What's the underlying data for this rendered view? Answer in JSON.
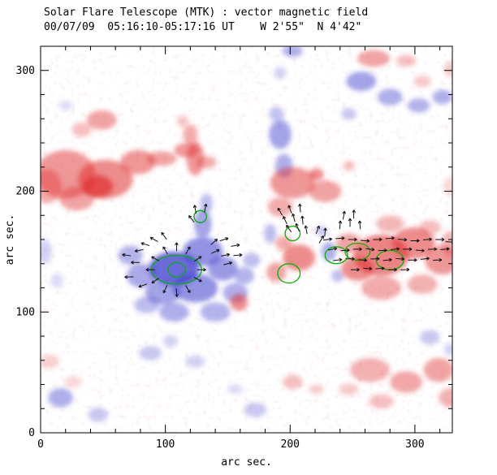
{
  "header": {
    "line1": "Solar Flare Telescope (MTK) : vector magnetic field",
    "line2": "00/07/09  05:16:10-05:17:16 UT    W 2'55\"  N 4'42\""
  },
  "chart_data": {
    "type": "heatmap",
    "title": "Solar Flare Telescope (MTK) : vector magnetic field",
    "subtitle": "00/07/09  05:16:10-05:17:16 UT    W 2'55\"  N 4'42\"",
    "xlabel": "arc sec.",
    "ylabel": "arc sec.",
    "xlim": [
      0,
      330
    ],
    "ylim": [
      0,
      320
    ],
    "xticks": [
      0,
      100,
      200,
      300
    ],
    "yticks": [
      0,
      100,
      200,
      300
    ],
    "minor_tick_step": 20,
    "colors": {
      "positive_polarity": "#e03030",
      "negative_polarity": "#3838cc",
      "contour": "#00b300",
      "arrow": "#111111",
      "axis": "#000000",
      "background": "#ffffff"
    },
    "arrow_length_arcsec": 7,
    "red_blobs": [
      [
        20,
        214,
        24,
        20,
        0.5
      ],
      [
        52,
        210,
        22,
        16,
        0.55
      ],
      [
        46,
        204,
        12,
        9,
        0.7
      ],
      [
        29,
        194,
        14,
        10,
        0.45
      ],
      [
        5,
        204,
        12,
        14,
        0.4
      ],
      [
        78,
        224,
        14,
        10,
        0.5
      ],
      [
        97,
        227,
        12,
        6,
        0.45
      ],
      [
        117,
        234,
        10,
        6,
        0.5
      ],
      [
        133,
        224,
        8,
        5,
        0.4
      ],
      [
        49,
        259,
        12,
        8,
        0.45
      ],
      [
        33,
        251,
        8,
        6,
        0.3
      ],
      [
        124,
        227,
        7,
        14,
        0.5
      ],
      [
        120,
        247,
        6,
        8,
        0.4
      ],
      [
        114,
        258,
        5,
        5,
        0.25
      ],
      [
        202,
        207,
        18,
        13,
        0.5
      ],
      [
        228,
        200,
        13,
        9,
        0.45
      ],
      [
        192,
        187,
        10,
        8,
        0.4
      ],
      [
        221,
        214,
        6,
        5,
        0.55
      ],
      [
        247,
        221,
        5,
        4,
        0.3
      ],
      [
        267,
        310,
        13,
        7,
        0.45
      ],
      [
        293,
        308,
        8,
        5,
        0.3
      ],
      [
        273,
        147,
        22,
        17,
        0.6
      ],
      [
        299,
        157,
        17,
        13,
        0.55
      ],
      [
        322,
        143,
        14,
        12,
        0.5
      ],
      [
        254,
        136,
        13,
        10,
        0.55
      ],
      [
        247,
        157,
        10,
        8,
        0.45
      ],
      [
        273,
        120,
        16,
        10,
        0.4
      ],
      [
        306,
        123,
        12,
        8,
        0.38
      ],
      [
        280,
        173,
        11,
        7,
        0.35
      ],
      [
        312,
        170,
        9,
        6,
        0.3
      ],
      [
        207,
        145,
        13,
        11,
        0.55
      ],
      [
        189,
        133,
        8,
        8,
        0.45
      ],
      [
        195,
        157,
        7,
        6,
        0.4
      ],
      [
        159,
        108,
        7,
        7,
        0.55
      ],
      [
        264,
        52,
        16,
        10,
        0.38
      ],
      [
        293,
        42,
        13,
        9,
        0.42
      ],
      [
        319,
        52,
        12,
        10,
        0.45
      ],
      [
        329,
        29,
        10,
        8,
        0.38
      ],
      [
        273,
        26,
        10,
        6,
        0.3
      ],
      [
        247,
        36,
        8,
        5,
        0.25
      ],
      [
        202,
        42,
        8,
        6,
        0.3
      ],
      [
        221,
        36,
        6,
        4,
        0.25
      ],
      [
        7,
        59,
        8,
        6,
        0.22
      ],
      [
        26,
        42,
        7,
        5,
        0.18
      ],
      [
        329,
        157,
        8,
        10,
        0.35
      ],
      [
        306,
        291,
        7,
        5,
        0.25
      ],
      [
        329,
        301,
        6,
        6,
        0.25
      ],
      [
        329,
        204,
        6,
        8,
        0.2
      ]
    ],
    "blue_blobs": [
      [
        107,
        136,
        20,
        14,
        0.75
      ],
      [
        130,
        150,
        16,
        12,
        0.55
      ],
      [
        146,
        136,
        12,
        10,
        0.5
      ],
      [
        124,
        120,
        18,
        12,
        0.55
      ],
      [
        98,
        116,
        14,
        10,
        0.45
      ],
      [
        81,
        130,
        12,
        10,
        0.42
      ],
      [
        156,
        116,
        10,
        8,
        0.4
      ],
      [
        140,
        100,
        12,
        8,
        0.38
      ],
      [
        107,
        100,
        12,
        8,
        0.4
      ],
      [
        85,
        106,
        10,
        7,
        0.32
      ],
      [
        163,
        130,
        8,
        7,
        0.38
      ],
      [
        169,
        143,
        7,
        6,
        0.32
      ],
      [
        130,
        173,
        7,
        12,
        0.45
      ],
      [
        133,
        190,
        5,
        8,
        0.32
      ],
      [
        72,
        147,
        10,
        8,
        0.38
      ],
      [
        192,
        247,
        9,
        12,
        0.45
      ],
      [
        195,
        221,
        7,
        10,
        0.4
      ],
      [
        189,
        264,
        6,
        6,
        0.3
      ],
      [
        202,
        316,
        8,
        5,
        0.4
      ],
      [
        192,
        298,
        5,
        5,
        0.22
      ],
      [
        257,
        291,
        12,
        8,
        0.45
      ],
      [
        280,
        278,
        10,
        7,
        0.4
      ],
      [
        303,
        271,
        9,
        6,
        0.38
      ],
      [
        322,
        278,
        8,
        6,
        0.4
      ],
      [
        247,
        264,
        6,
        5,
        0.28
      ],
      [
        231,
        150,
        6,
        8,
        0.4
      ],
      [
        238,
        130,
        5,
        5,
        0.32
      ],
      [
        225,
        167,
        5,
        4,
        0.28
      ],
      [
        184,
        165,
        5,
        8,
        0.32
      ],
      [
        16,
        29,
        10,
        8,
        0.4
      ],
      [
        46,
        15,
        8,
        6,
        0.28
      ],
      [
        88,
        66,
        9,
        6,
        0.28
      ],
      [
        124,
        59,
        8,
        5,
        0.22
      ],
      [
        104,
        76,
        6,
        5,
        0.22
      ],
      [
        172,
        19,
        9,
        6,
        0.28
      ],
      [
        156,
        36,
        6,
        4,
        0.18
      ],
      [
        312,
        79,
        8,
        6,
        0.28
      ],
      [
        329,
        69,
        6,
        5,
        0.22
      ],
      [
        3,
        150,
        6,
        10,
        0.22
      ],
      [
        13,
        126,
        5,
        6,
        0.18
      ],
      [
        20,
        271,
        5,
        4,
        0.18
      ]
    ],
    "green_contours": [
      [
        109,
        135,
        20,
        12
      ],
      [
        109,
        135,
        7,
        6
      ],
      [
        128,
        179,
        5,
        5
      ],
      [
        202,
        165,
        6,
        6
      ],
      [
        199,
        132,
        9,
        8
      ],
      [
        237,
        147,
        9,
        7
      ],
      [
        254,
        150,
        10,
        7
      ],
      [
        280,
        143,
        11,
        8
      ]
    ],
    "arrows": [
      [
        230,
        160,
        8
      ],
      [
        240,
        161,
        4
      ],
      [
        250,
        160,
        0
      ],
      [
        260,
        159,
        -4
      ],
      [
        270,
        160,
        2
      ],
      [
        280,
        161,
        6
      ],
      [
        290,
        160,
        -4
      ],
      [
        300,
        159,
        0
      ],
      [
        310,
        160,
        4
      ],
      [
        320,
        160,
        0
      ],
      [
        328,
        158,
        -4
      ],
      [
        234,
        152,
        12
      ],
      [
        244,
        151,
        4
      ],
      [
        254,
        152,
        0
      ],
      [
        264,
        152,
        -8
      ],
      [
        274,
        151,
        2
      ],
      [
        284,
        152,
        6
      ],
      [
        294,
        152,
        0
      ],
      [
        304,
        151,
        -4
      ],
      [
        314,
        152,
        2
      ],
      [
        324,
        152,
        6
      ],
      [
        238,
        143,
        8
      ],
      [
        248,
        144,
        0
      ],
      [
        258,
        143,
        -4
      ],
      [
        268,
        144,
        2
      ],
      [
        278,
        143,
        6
      ],
      [
        288,
        144,
        -4
      ],
      [
        298,
        143,
        0
      ],
      [
        308,
        144,
        6
      ],
      [
        318,
        143,
        2
      ],
      [
        252,
        135,
        0
      ],
      [
        262,
        136,
        -4
      ],
      [
        272,
        136,
        4
      ],
      [
        282,
        135,
        0
      ],
      [
        292,
        135,
        2
      ],
      [
        240,
        172,
        85
      ],
      [
        248,
        174,
        90
      ],
      [
        256,
        172,
        95
      ],
      [
        243,
        180,
        80
      ],
      [
        251,
        181,
        88
      ],
      [
        196,
        176,
        115
      ],
      [
        203,
        178,
        105
      ],
      [
        210,
        176,
        95
      ],
      [
        199,
        169,
        125
      ],
      [
        206,
        170,
        112
      ],
      [
        213,
        168,
        100
      ],
      [
        192,
        183,
        120
      ],
      [
        200,
        185,
        110
      ],
      [
        208,
        186,
        95
      ],
      [
        129,
        135,
        0
      ],
      [
        126,
        144,
        35
      ],
      [
        118,
        151,
        60
      ],
      [
        109,
        154,
        90
      ],
      [
        100,
        151,
        120
      ],
      [
        92,
        144,
        150
      ],
      [
        88,
        135,
        180
      ],
      [
        92,
        126,
        215
      ],
      [
        100,
        119,
        245
      ],
      [
        109,
        116,
        275
      ],
      [
        118,
        119,
        300
      ],
      [
        126,
        127,
        330
      ],
      [
        76,
        141,
        180
      ],
      [
        69,
        147,
        172
      ],
      [
        79,
        151,
        192
      ],
      [
        71,
        129,
        182
      ],
      [
        82,
        122,
        200
      ],
      [
        91,
        160,
        150
      ],
      [
        99,
        163,
        125
      ],
      [
        84,
        156,
        162
      ],
      [
        140,
        150,
        25
      ],
      [
        148,
        147,
        12
      ],
      [
        139,
        158,
        42
      ],
      [
        147,
        160,
        18
      ],
      [
        156,
        155,
        10
      ],
      [
        158,
        147,
        5
      ],
      [
        150,
        140,
        15
      ],
      [
        124,
        185,
        100
      ],
      [
        132,
        186,
        80
      ],
      [
        121,
        177,
        128
      ],
      [
        222,
        168,
        70
      ],
      [
        228,
        166,
        85
      ],
      [
        225,
        160,
        60
      ]
    ]
  }
}
